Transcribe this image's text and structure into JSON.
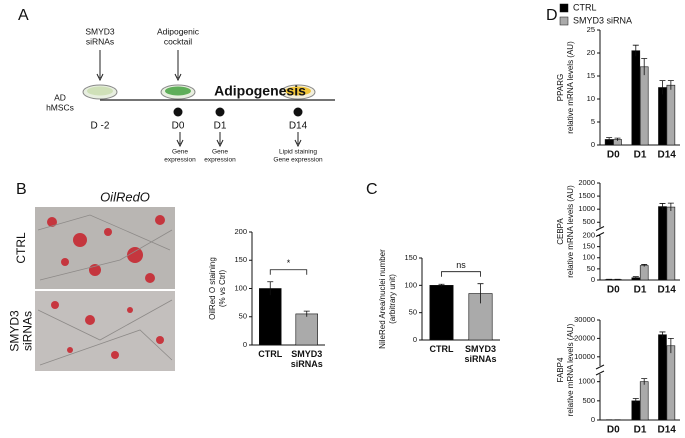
{
  "panels": {
    "a": "A",
    "b": "B",
    "c": "C",
    "d": "D"
  },
  "timeline": {
    "start_label": [
      "AD",
      "hMSCs"
    ],
    "treatment": [
      "SMYD3",
      "siRNAs"
    ],
    "cocktail": [
      "Adipogenic",
      "cocktail"
    ],
    "phase": "Adipogenesis",
    "days": [
      "D -2",
      "D0",
      "D1",
      "D14"
    ],
    "readouts": [
      [
        "Gene",
        "expression"
      ],
      [
        "Gene",
        "expression"
      ],
      [
        "Lipid staining",
        "Gene expression"
      ]
    ]
  },
  "micrograph": {
    "title": "OilRedO",
    "rows": [
      [
        "CTRL"
      ],
      [
        "SMYD3",
        "siRNAs"
      ]
    ]
  },
  "chart_data": [
    {
      "type": "bar",
      "ylabel": [
        "OilRed O staining",
        "(% vs Ctrl)"
      ],
      "categories": [
        "CTRL",
        "SMYD3 siRNAs"
      ],
      "values": [
        100,
        55
      ],
      "errors": [
        12,
        5
      ],
      "colors": [
        "#000000",
        "#aaaaaa"
      ],
      "ylim": [
        0,
        200
      ],
      "yticks": [
        0,
        50,
        100,
        150,
        200
      ],
      "annotation": "*"
    },
    {
      "type": "bar",
      "ylabel": [
        "NileRed Area/nuclei number",
        "(arbitrary unit)"
      ],
      "categories": [
        "CTRL",
        "SMYD3 siRNAs"
      ],
      "values": [
        100,
        85
      ],
      "errors": [
        2,
        18
      ],
      "colors": [
        "#000000",
        "#aaaaaa"
      ],
      "ylim": [
        0,
        150
      ],
      "yticks": [
        0,
        50,
        100,
        150
      ],
      "annotation": "ns"
    },
    {
      "type": "grouped-bar",
      "ylabel": [
        "PPARG",
        "relative mRNA levels (AU)"
      ],
      "categories": [
        "D0",
        "D1",
        "D14"
      ],
      "series": [
        {
          "name": "CTRL",
          "color": "#000000",
          "values": [
            1.2,
            20.5,
            12.5
          ],
          "errors": [
            0.4,
            1.2,
            1.5
          ]
        },
        {
          "name": "SMYD3 siRNA",
          "color": "#aaaaaa",
          "values": [
            1.2,
            17,
            13
          ],
          "errors": [
            0.3,
            1.8,
            1.0
          ]
        }
      ],
      "segments": [
        {
          "ylim": [
            0,
            25
          ],
          "yticks": [
            0,
            5,
            10,
            15,
            20,
            25
          ]
        }
      ]
    },
    {
      "type": "grouped-bar",
      "ylabel": [
        "CEBPA",
        "relative mRNA levels (AU)"
      ],
      "categories": [
        "D0",
        "D1",
        "D14"
      ],
      "series": [
        {
          "name": "CTRL",
          "color": "#000000",
          "values": [
            2,
            10,
            1100
          ],
          "errors": [
            1,
            5,
            120
          ]
        },
        {
          "name": "SMYD3 siRNA",
          "color": "#aaaaaa",
          "values": [
            2,
            65,
            1080
          ],
          "errors": [
            1,
            5,
            150
          ]
        }
      ],
      "segments": [
        {
          "ylim": [
            0,
            200
          ],
          "yticks": [
            0,
            50,
            100,
            150,
            200
          ]
        },
        {
          "ylim": [
            300,
            2000
          ],
          "yticks": [
            500,
            1000,
            1500,
            2000
          ]
        }
      ]
    },
    {
      "type": "grouped-bar",
      "ylabel": [
        "FABP4",
        "relative mRNA levels (AU)"
      ],
      "categories": [
        "D0",
        "D1",
        "D14"
      ],
      "series": [
        {
          "name": "CTRL",
          "color": "#000000",
          "values": [
            5,
            500,
            22000
          ],
          "errors": [
            2,
            60,
            1500
          ]
        },
        {
          "name": "SMYD3 siRNA",
          "color": "#aaaaaa",
          "values": [
            5,
            1000,
            16000
          ],
          "errors": [
            2,
            80,
            4000
          ]
        }
      ],
      "segments": [
        {
          "ylim": [
            0,
            1200
          ],
          "yticks": [
            0,
            500,
            1000
          ]
        },
        {
          "ylim": [
            5000,
            30000
          ],
          "yticks": [
            10000,
            20000,
            30000
          ]
        }
      ]
    }
  ]
}
